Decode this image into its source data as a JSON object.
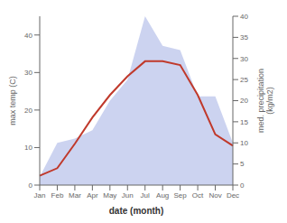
{
  "chart_data": {
    "type": "line",
    "xlabel": "date (month)",
    "ylabel": "max temp (C)",
    "y2label": "med. precipitation\n(kg/m2)",
    "categories": [
      "Jan",
      "Feb",
      "Mar",
      "Apr",
      "May",
      "Jun",
      "Jul",
      "Aug",
      "Sep",
      "Oct",
      "Nov",
      "Dec"
    ],
    "series": [
      {
        "type": "area",
        "axis": "y2",
        "color": "#b0bce8",
        "values": [
          2,
          10,
          11,
          13,
          20,
          25,
          40,
          33,
          32,
          21,
          21,
          10
        ]
      },
      {
        "type": "line",
        "color": "#c0392b",
        "values": [
          2.5,
          4.5,
          11,
          18,
          24,
          29,
          33,
          33,
          32,
          24,
          13.5,
          10.5
        ]
      }
    ],
    "ylim": [
      0,
      45
    ],
    "yticks": [
      0,
      10,
      20,
      30,
      40
    ],
    "y2lim": [
      0,
      40
    ],
    "y2ticks": [
      0,
      5,
      10,
      15,
      20,
      25,
      30,
      35,
      40
    ],
    "grid": false
  }
}
